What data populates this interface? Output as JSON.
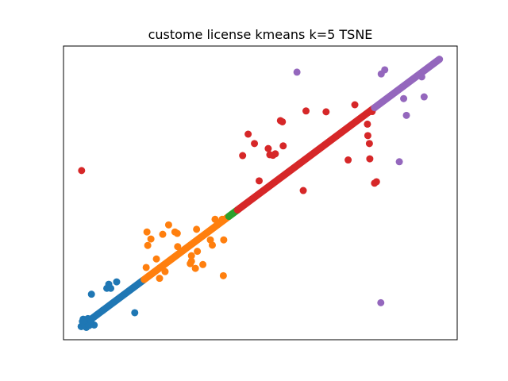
{
  "chart_data": {
    "type": "scatter",
    "title": "custome license kmeans k=5 TSNE",
    "xlabel": "",
    "ylabel": "",
    "xlim": [
      0,
      100
    ],
    "ylim": [
      0,
      100
    ],
    "grid": false,
    "ticks": "hidden",
    "series": [
      {
        "color": "#1f77b4",
        "line": [
          [
            4.5,
            4.5
          ],
          [
            20.3,
            20.3
          ]
        ],
        "points": [
          [
            4.5,
            4.5
          ],
          [
            5.2,
            5.5
          ],
          [
            5.8,
            4.2
          ],
          [
            6.5,
            4.8
          ],
          [
            7.8,
            5.0
          ],
          [
            5.0,
            7.0
          ],
          [
            6.2,
            7.2
          ],
          [
            7.0,
            6.5
          ],
          [
            8.5,
            8.5
          ],
          [
            10.0,
            10.0
          ],
          [
            7.1,
            15.5
          ],
          [
            11.0,
            17.5
          ],
          [
            12.0,
            17.5
          ],
          [
            11.5,
            18.9
          ],
          [
            13.5,
            19.7
          ],
          [
            18.1,
            9.2
          ],
          [
            4.8,
            6.2
          ]
        ]
      },
      {
        "color": "#ff7f0e",
        "line": [
          [
            20.5,
            20.5
          ],
          [
            42.0,
            42.0
          ]
        ],
        "points": [
          [
            21.0,
            24.6
          ],
          [
            22.2,
            34.3
          ],
          [
            21.4,
            32.1
          ],
          [
            21.2,
            36.7
          ],
          [
            23.6,
            27.5
          ],
          [
            24.4,
            20.9
          ],
          [
            25.8,
            23.2
          ],
          [
            25.2,
            35.9
          ],
          [
            26.7,
            39.1
          ],
          [
            28.3,
            36.7
          ],
          [
            28.9,
            36.2
          ],
          [
            29.0,
            31.7
          ],
          [
            32.5,
            28.6
          ],
          [
            32.2,
            25.9
          ],
          [
            32.5,
            26.7
          ],
          [
            33.5,
            24.3
          ],
          [
            34.0,
            30.1
          ],
          [
            33.8,
            37.6
          ],
          [
            35.4,
            25.6
          ],
          [
            37.3,
            34.0
          ],
          [
            37.8,
            32.2
          ],
          [
            38.5,
            41.0
          ],
          [
            40.3,
            41.0
          ],
          [
            40.7,
            34.0
          ],
          [
            40.6,
            21.8
          ]
        ]
      },
      {
        "color": "#2ca02c",
        "line": [
          [
            42.0,
            42.0
          ],
          [
            44.2,
            44.2
          ]
        ],
        "points": []
      },
      {
        "color": "#d62728",
        "line": [
          [
            44.2,
            44.2
          ],
          [
            79.0,
            79.0
          ]
        ],
        "points": [
          [
            4.6,
            57.6
          ],
          [
            45.5,
            62.7
          ],
          [
            46.9,
            70.0
          ],
          [
            48.5,
            66.8
          ],
          [
            49.7,
            54.1
          ],
          [
            52.0,
            65.1
          ],
          [
            52.4,
            63.0
          ],
          [
            53.2,
            62.8
          ],
          [
            53.8,
            63.3
          ],
          [
            55.8,
            66.0
          ],
          [
            55.6,
            74.2
          ],
          [
            55.1,
            74.6
          ],
          [
            60.9,
            50.8
          ],
          [
            61.6,
            77.9
          ],
          [
            66.7,
            77.6
          ],
          [
            72.3,
            61.2
          ],
          [
            74.0,
            80.0
          ],
          [
            77.2,
            73.4
          ],
          [
            77.3,
            69.5
          ],
          [
            77.7,
            66.8
          ],
          [
            77.8,
            61.6
          ],
          [
            79.5,
            53.8
          ],
          [
            79.0,
            53.3
          ],
          [
            78.4,
            77.7
          ]
        ]
      },
      {
        "color": "#9467bd",
        "line": [
          [
            79.0,
            79.0
          ],
          [
            95.5,
            95.5
          ]
        ],
        "points": [
          [
            59.3,
            91.1
          ],
          [
            80.6,
            12.6
          ],
          [
            80.7,
            90.5
          ],
          [
            81.6,
            91.9
          ],
          [
            85.3,
            60.6
          ],
          [
            86.4,
            82.1
          ],
          [
            87.1,
            76.4
          ],
          [
            91.0,
            89.5
          ],
          [
            91.6,
            82.7
          ]
        ]
      }
    ]
  }
}
